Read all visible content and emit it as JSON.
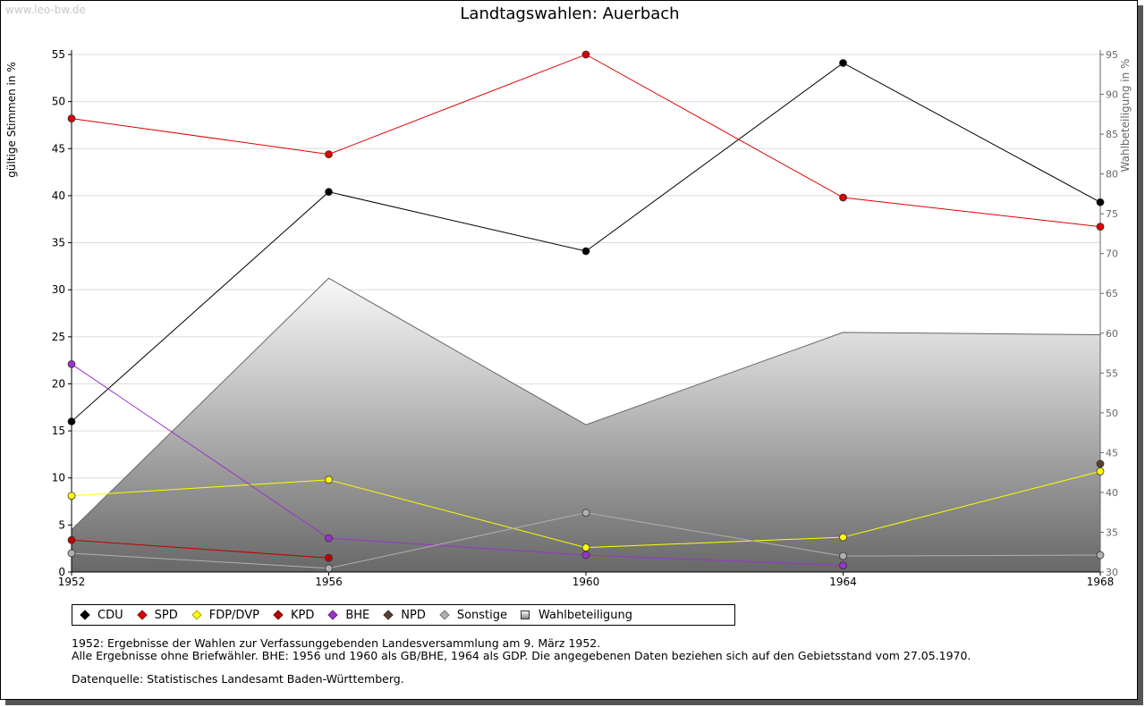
{
  "watermark": "www.leo-bw.de",
  "chart_data": {
    "type": "line",
    "title": "Landtagswahlen: Auerbach",
    "ylabel": "gültige Stimmen in %",
    "y2label": "Wahlbeteiligung in %",
    "x": [
      1952,
      1956,
      1960,
      1964,
      1968
    ],
    "x_tick_labels": [
      "1952",
      "1956",
      "1960",
      "1964",
      "1968"
    ],
    "ylim": [
      0,
      55
    ],
    "y_ticks": [
      0,
      5,
      10,
      15,
      20,
      25,
      30,
      35,
      40,
      45,
      50,
      55
    ],
    "y2lim": [
      30,
      95
    ],
    "y2_ticks": [
      30,
      35,
      40,
      45,
      50,
      55,
      60,
      65,
      70,
      75,
      80,
      85,
      90,
      95
    ],
    "grid": true,
    "series": [
      {
        "name": "CDU",
        "color": "#000000",
        "values": [
          16.0,
          40.4,
          34.1,
          54.1,
          39.3
        ]
      },
      {
        "name": "SPD",
        "color": "#e00000",
        "values": [
          48.2,
          44.4,
          55.0,
          39.8,
          36.7
        ]
      },
      {
        "name": "FDP/DVP",
        "color": "#ffff00",
        "values": [
          8.1,
          9.8,
          2.6,
          3.7,
          10.7
        ]
      },
      {
        "name": "KPD",
        "color": "#c00000",
        "values": [
          3.4,
          1.5,
          null,
          null,
          null
        ]
      },
      {
        "name": "BHE",
        "color": "#9933cc",
        "values": [
          22.1,
          3.6,
          1.8,
          0.7,
          null
        ]
      },
      {
        "name": "NPD",
        "color": "#5c4033",
        "values": [
          null,
          null,
          null,
          null,
          11.5
        ]
      },
      {
        "name": "Sonstige",
        "color": "#b0b0b0",
        "values": [
          2.0,
          0.4,
          6.3,
          1.7,
          1.8
        ]
      }
    ],
    "area": {
      "name": "Wahlbeteiligung",
      "axis": "right",
      "values": [
        35.3,
        66.9,
        48.5,
        60.1,
        59.8
      ]
    }
  },
  "legend": [
    {
      "label": "CDU",
      "color": "#000000"
    },
    {
      "label": "SPD",
      "color": "#e00000"
    },
    {
      "label": "FDP/DVP",
      "color": "#ffff00"
    },
    {
      "label": "KPD",
      "color": "#c00000"
    },
    {
      "label": "BHE",
      "color": "#9933cc"
    },
    {
      "label": "NPD",
      "color": "#5c4033"
    },
    {
      "label": "Sonstige",
      "color": "#b0b0b0"
    },
    {
      "label": "Wahlbeteiligung",
      "color": "#bbbbbb"
    }
  ],
  "notes": {
    "line1": "1952: Ergebnisse der Wahlen zur Verfassunggebenden Landesversammlung am 9. März 1952.",
    "line2": "Alle Ergebnisse ohne Briefwähler. BHE: 1956 und 1960 als GB/BHE, 1964 als GDP. Die angegebenen Daten beziehen sich auf den Gebietsstand vom 27.05.1970.",
    "line3": "Datenquelle: Statistisches Landesamt Baden-Württemberg."
  }
}
